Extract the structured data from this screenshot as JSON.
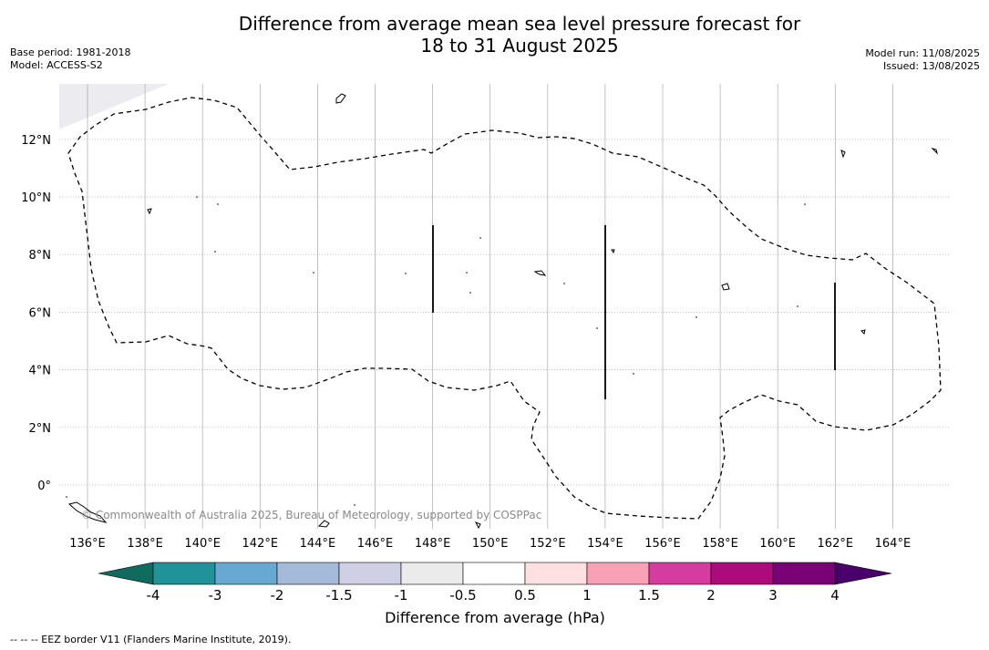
{
  "title_line1": "Difference from average mean sea level pressure forecast for",
  "title_line2": "18 to 31 August 2025",
  "base_period": "Base period: 1981-2018",
  "model": "Model: ACCESS-S2",
  "model_run": "Model run: 11/08/2025",
  "issued": "Issued: 13/08/2025",
  "copyright": "© Commonwealth of Australia 2025, Bureau of Meteorology, supported by COSPPac",
  "footnote": "--  --  -- EEZ border V11 (Flanders Marine Institute, 2019).",
  "lon_ticks": [
    "136°E",
    "138°E",
    "140°E",
    "142°E",
    "144°E",
    "146°E",
    "148°E",
    "150°E",
    "152°E",
    "154°E",
    "156°E",
    "158°E",
    "160°E",
    "162°E",
    "164°E"
  ],
  "lat_ticks": [
    "12°N",
    "10°N",
    "8°N",
    "6°N",
    "4°N",
    "2°N",
    "0°"
  ],
  "colorbar": {
    "title": "Difference from average (hPa)",
    "labels": [
      "-4",
      "-3",
      "-2",
      "-1.5",
      "-1",
      "-0.5",
      "0.5",
      "1",
      "1.5",
      "2",
      "3",
      "4"
    ],
    "colors": [
      "#0e6b5e",
      "#20939a",
      "#68a9d2",
      "#a5b9da",
      "#cfcfe6",
      "#ebebeb",
      "#ffffff",
      "#fee0e0",
      "#f7a0b6",
      "#d63b9f",
      "#ad0b7b",
      "#7a0277",
      "#49006a"
    ]
  },
  "map": {
    "background": "#ffffff",
    "missing_color": "#ebebf0",
    "grid_color": "#aaaaaa",
    "field_color": "#ffffff"
  }
}
